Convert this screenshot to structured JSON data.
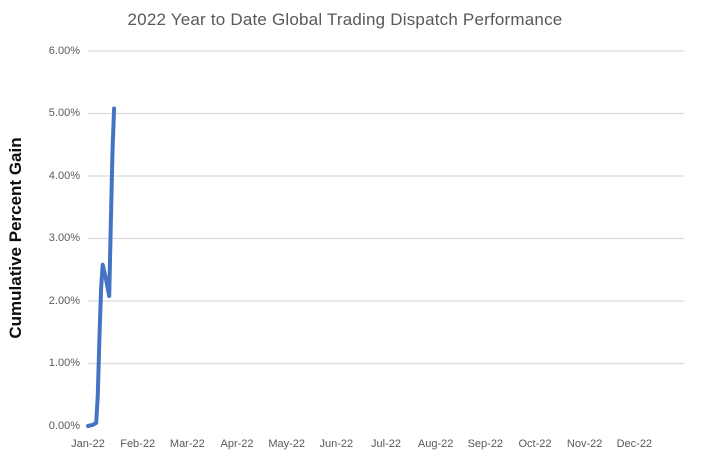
{
  "chart_data": {
    "type": "line",
    "title": "2022 Year to Date Global Trading Dispatch Performance",
    "ylabel": "Cumulative Percent Gain",
    "xlabel": "",
    "ylim": [
      0,
      6
    ],
    "x_range_days": 365,
    "grid": "horizontal-only",
    "legend": "none",
    "y_ticks": [
      {
        "value": 0,
        "label": "0.00%",
        "gridline": false
      },
      {
        "value": 1,
        "label": "1.00%",
        "gridline": true
      },
      {
        "value": 2,
        "label": "2.00%",
        "gridline": true
      },
      {
        "value": 3,
        "label": "3.00%",
        "gridline": true
      },
      {
        "value": 4,
        "label": "4.00%",
        "gridline": true
      },
      {
        "value": 5,
        "label": "5.00%",
        "gridline": true
      },
      {
        "value": 6,
        "label": "6.00%",
        "gridline": true
      }
    ],
    "x_tick_labels": [
      "Jan-22",
      "Feb-22",
      "Mar-22",
      "Apr-22",
      "May-22",
      "Jun-22",
      "Jul-22",
      "Aug-22",
      "Sep-22",
      "Oct-22",
      "Nov-22",
      "Dec-22"
    ],
    "series": [
      {
        "name": "Cumulative Percent Gain",
        "color": "#4472C4",
        "points_day_value": [
          [
            0,
            0.0
          ],
          [
            3,
            0.02
          ],
          [
            5,
            0.05
          ],
          [
            6,
            0.5
          ],
          [
            7,
            1.4
          ],
          [
            8,
            2.2
          ],
          [
            9,
            2.58
          ],
          [
            11,
            2.35
          ],
          [
            13,
            2.08
          ],
          [
            14,
            3.3
          ],
          [
            15,
            4.4
          ],
          [
            16,
            5.08
          ]
        ]
      }
    ]
  },
  "colors": {
    "background": "#FFFFFF",
    "title_text": "#595959",
    "tick_text": "#595959",
    "axis_title_text": "#0D0D0D",
    "gridline": "#DCDCDC",
    "series_line": "#4472C4"
  }
}
